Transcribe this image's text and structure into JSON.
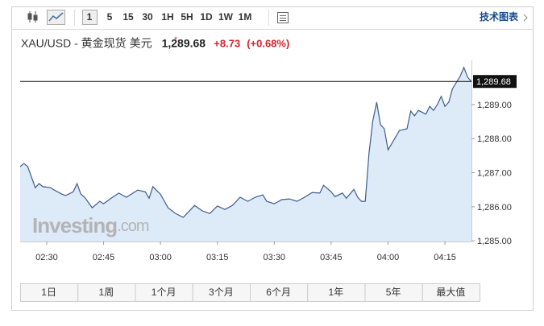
{
  "toolbar": {
    "intervals": [
      "1",
      "5",
      "15",
      "30",
      "1H",
      "5H",
      "1D",
      "1W",
      "1M"
    ],
    "link": "技术图表"
  },
  "header": {
    "symbol": "XAU/USD - 黄金现货 美元",
    "price": "1,289.68",
    "change": "+8.73",
    "change_pct": "(+0.68%)"
  },
  "watermark": {
    "brand": "Investing",
    "suffix": ".com"
  },
  "ranges": [
    "1日",
    "1周",
    "1个月",
    "3个月",
    "6个月",
    "1年",
    "5年",
    "最大值"
  ],
  "chart_data": {
    "type": "area",
    "color": "#3f5b8c",
    "fill": "#ddeaf8",
    "x": [
      "02:23",
      "02:24",
      "02:25",
      "02:27",
      "02:28",
      "02:29",
      "02:31",
      "02:32",
      "02:34",
      "02:35",
      "02:37",
      "02:38",
      "02:39",
      "02:40",
      "02:42",
      "02:44",
      "02:45",
      "02:47",
      "02:49",
      "02:51",
      "02:54",
      "02:56",
      "02:57",
      "02:58",
      "03:00",
      "03:02",
      "03:04",
      "03:06",
      "03:08",
      "03:09",
      "03:11",
      "03:13",
      "03:15",
      "03:17",
      "03:19",
      "03:21",
      "03:23",
      "03:25",
      "03:27",
      "03:28",
      "03:30",
      "03:32",
      "03:34",
      "03:36",
      "03:38",
      "03:40",
      "03:42",
      "03:43",
      "03:45",
      "03:46",
      "03:48",
      "03:49",
      "03:51",
      "03:52",
      "03:53",
      "03:54",
      "03:55",
      "03:56",
      "03:57",
      "03:58",
      "03:59",
      "04:00",
      "04:02",
      "04:03",
      "04:05",
      "04:06",
      "04:07",
      "04:08",
      "04:10",
      "04:11",
      "04:12",
      "04:13",
      "04:14",
      "04:15",
      "04:16",
      "04:17",
      "04:19",
      "04:20",
      "04:21",
      "04:22"
    ],
    "values": [
      1287.18,
      1287.27,
      1287.18,
      1286.56,
      1286.68,
      1286.59,
      1286.56,
      1286.49,
      1286.37,
      1286.33,
      1286.44,
      1286.68,
      1286.37,
      1286.28,
      1285.97,
      1286.16,
      1286.09,
      1286.25,
      1286.4,
      1286.28,
      1286.49,
      1286.44,
      1286.25,
      1286.59,
      1286.37,
      1285.97,
      1285.8,
      1285.69,
      1285.92,
      1286.04,
      1285.88,
      1285.8,
      1286.02,
      1285.92,
      1286.04,
      1286.28,
      1286.16,
      1286.28,
      1286.35,
      1286.16,
      1286.09,
      1286.21,
      1286.23,
      1286.16,
      1286.28,
      1286.42,
      1286.4,
      1286.63,
      1286.44,
      1286.3,
      1286.4,
      1286.25,
      1286.51,
      1286.28,
      1286.16,
      1286.16,
      1287.58,
      1288.53,
      1289.07,
      1288.41,
      1288.29,
      1287.67,
      1288.05,
      1288.24,
      1288.29,
      1288.81,
      1288.67,
      1288.83,
      1288.72,
      1288.95,
      1288.83,
      1289.0,
      1289.24,
      1288.95,
      1289.07,
      1289.47,
      1289.83,
      1290.09,
      1289.8,
      1289.68
    ],
    "xlim": [
      "02:23",
      "04:22"
    ],
    "xticks": [
      "02:30",
      "02:45",
      "03:00",
      "03:15",
      "03:30",
      "03:45",
      "04:00",
      "04:15"
    ],
    "ylim": [
      1284.98,
      1290.3
    ],
    "yticks": [
      {
        "value": 1285,
        "label": "1,285.00"
      },
      {
        "value": 1286,
        "label": "1,286.00"
      },
      {
        "value": 1287,
        "label": "1,287.00"
      },
      {
        "value": 1288,
        "label": "1,288.00"
      },
      {
        "value": 1289,
        "label": "1,289.00"
      }
    ],
    "last_price": {
      "value": 1289.68,
      "label": "1,289.68"
    }
  }
}
